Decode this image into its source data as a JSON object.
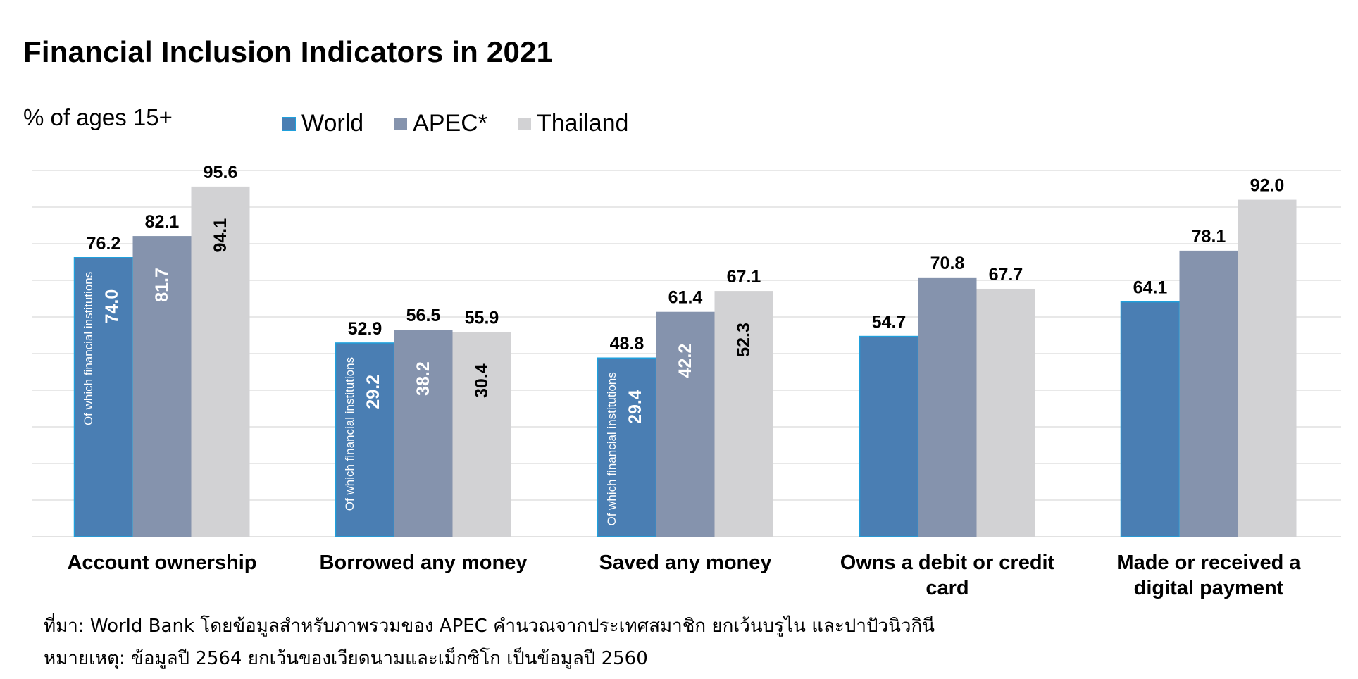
{
  "title": "Financial Inclusion Indicators in 2021",
  "subtitle": "% of ages 15+",
  "legend": [
    {
      "name": "World",
      "color": "#4a7eb3"
    },
    {
      "name": "APEC*",
      "color": "#8593ad"
    },
    {
      "name": "Thailand",
      "color": "#d2d2d4"
    }
  ],
  "colors": {
    "world": "#4a7eb3",
    "world_edge": "#1fa0dc",
    "apec": "#8593ad",
    "thailand": "#d2d2d4",
    "grid": "#d9d9d9"
  },
  "chart_data": {
    "type": "bar",
    "title": "Financial Inclusion Indicators in 2021",
    "ylabel": "% of ages 15+",
    "ylim": [
      0,
      100
    ],
    "grid": true,
    "legend_position": "top",
    "categories": [
      [
        "Account ownership"
      ],
      [
        "Borrowed any money"
      ],
      [
        "Saved any money"
      ],
      [
        "Owns a debit or credit",
        "card"
      ],
      [
        "Made or received a",
        "digital payment"
      ]
    ],
    "series": [
      {
        "name": "World",
        "values": [
          76.2,
          52.9,
          48.8,
          54.7,
          64.1
        ],
        "inner_values": [
          74.0,
          29.2,
          29.4,
          null,
          null
        ]
      },
      {
        "name": "APEC*",
        "values": [
          82.1,
          56.5,
          61.4,
          70.8,
          78.1
        ],
        "inner_values": [
          81.7,
          38.2,
          42.2,
          null,
          null
        ]
      },
      {
        "name": "Thailand",
        "values": [
          95.6,
          55.9,
          67.1,
          67.7,
          92.0
        ],
        "inner_values": [
          94.1,
          30.4,
          52.3,
          null,
          null
        ]
      }
    ],
    "annotations": [
      {
        "category": 0,
        "series": "World",
        "text": "Of which financial institutions"
      },
      {
        "category": 1,
        "series": "World",
        "text": "Of which financial institutions"
      },
      {
        "category": 2,
        "series": "World",
        "text": "Of which financial institutions"
      }
    ]
  },
  "footnotes": [
    "ที่มา: World Bank โดยข้อมูลสำหรับภาพรวมของ APEC คำนวณจากประเทศสมาชิก ยกเว้นบรูไน และปาปัวนิวกินี",
    "หมายเหตุ: ข้อมูลปี 2564 ยกเว้นของเวียดนามและเม็กซิโก เป็นข้อมูลปี 2560"
  ]
}
